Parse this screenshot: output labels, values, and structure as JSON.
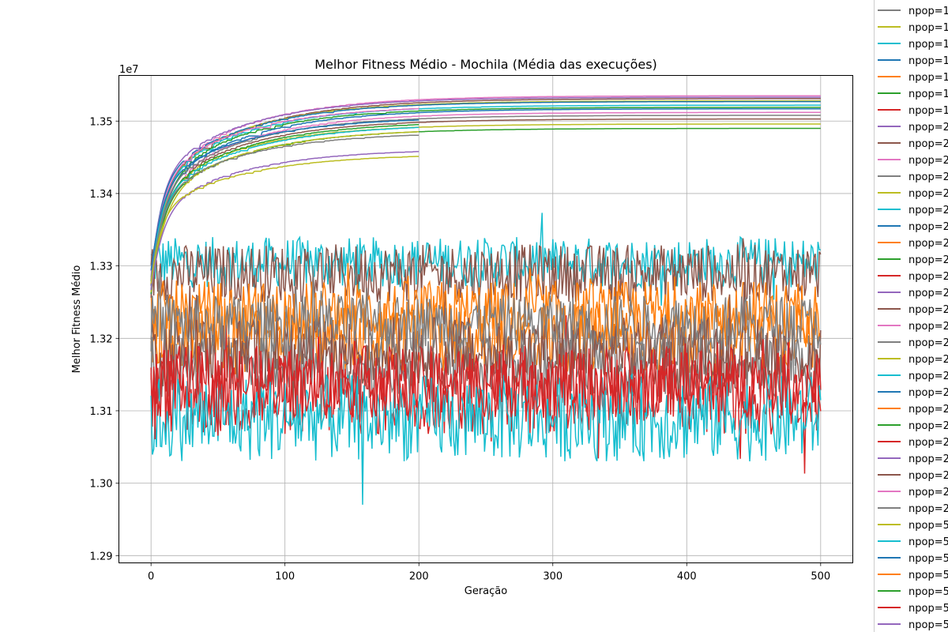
{
  "chart_data": {
    "type": "line",
    "title": "Melhor Fitness Médio - Mochila (Média das execuções)",
    "xlabel": "Geração",
    "ylabel": "Melhor Fitness Médio",
    "y_offset_label": "1e7",
    "xlim": [
      -24,
      524
    ],
    "ylim": [
      12.89,
      13.563
    ],
    "y_unit_note": "values in units of 1e6 (axis shows 1e7 multiplier)",
    "x_ticks": [
      0,
      100,
      200,
      300,
      400,
      500
    ],
    "y_ticks": [
      12.9,
      13.0,
      13.1,
      13.2,
      13.3,
      13.4,
      13.5
    ],
    "y_tick_labels": [
      "1.29",
      "1.30",
      "1.31",
      "1.32",
      "1.33",
      "1.34",
      "1.35"
    ],
    "grid": true,
    "legend_position": "right-outside",
    "legend": [
      {
        "label": "npop=1",
        "color": "#7f7f7f"
      },
      {
        "label": "npop=1",
        "color": "#bcbd22"
      },
      {
        "label": "npop=1",
        "color": "#17becf"
      },
      {
        "label": "npop=1",
        "color": "#1f77b4"
      },
      {
        "label": "npop=1",
        "color": "#ff7f0e"
      },
      {
        "label": "npop=1",
        "color": "#2ca02c"
      },
      {
        "label": "npop=1",
        "color": "#d62728"
      },
      {
        "label": "npop=2",
        "color": "#9467bd"
      },
      {
        "label": "npop=2",
        "color": "#8c564b"
      },
      {
        "label": "npop=2",
        "color": "#e377c2"
      },
      {
        "label": "npop=2",
        "color": "#7f7f7f"
      },
      {
        "label": "npop=2",
        "color": "#bcbd22"
      },
      {
        "label": "npop=2",
        "color": "#17becf"
      },
      {
        "label": "npop=2",
        "color": "#1f77b4"
      },
      {
        "label": "npop=2",
        "color": "#ff7f0e"
      },
      {
        "label": "npop=2",
        "color": "#2ca02c"
      },
      {
        "label": "npop=2",
        "color": "#d62728"
      },
      {
        "label": "npop=2",
        "color": "#9467bd"
      },
      {
        "label": "npop=2",
        "color": "#8c564b"
      },
      {
        "label": "npop=2",
        "color": "#e377c2"
      },
      {
        "label": "npop=2",
        "color": "#7f7f7f"
      },
      {
        "label": "npop=2",
        "color": "#bcbd22"
      },
      {
        "label": "npop=2",
        "color": "#17becf"
      },
      {
        "label": "npop=2",
        "color": "#1f77b4"
      },
      {
        "label": "npop=2",
        "color": "#ff7f0e"
      },
      {
        "label": "npop=2",
        "color": "#2ca02c"
      },
      {
        "label": "npop=2",
        "color": "#d62728"
      },
      {
        "label": "npop=2",
        "color": "#9467bd"
      },
      {
        "label": "npop=2",
        "color": "#8c564b"
      },
      {
        "label": "npop=2",
        "color": "#e377c2"
      },
      {
        "label": "npop=2",
        "color": "#7f7f7f"
      },
      {
        "label": "npop=5",
        "color": "#bcbd22"
      },
      {
        "label": "npop=5",
        "color": "#17becf"
      },
      {
        "label": "npop=5",
        "color": "#1f77b4"
      },
      {
        "label": "npop=5",
        "color": "#ff7f0e"
      },
      {
        "label": "npop=5",
        "color": "#2ca02c"
      },
      {
        "label": "npop=5",
        "color": "#d62728"
      },
      {
        "label": "npop=5",
        "color": "#9467bd"
      }
    ],
    "series_groups": {
      "converging": [
        {
          "color": "#e377c2",
          "xmax": 500,
          "final": 13.535
        },
        {
          "color": "#9467bd",
          "xmax": 500,
          "final": 13.533
        },
        {
          "color": "#8c564b",
          "xmax": 500,
          "final": 13.531
        },
        {
          "color": "#bcbd22",
          "xmax": 500,
          "final": 13.528
        },
        {
          "color": "#1f77b4",
          "xmax": 500,
          "final": 13.527
        },
        {
          "color": "#17becf",
          "xmax": 500,
          "final": 13.522
        },
        {
          "color": "#2ca02c",
          "xmax": 500,
          "final": 13.519
        },
        {
          "color": "#1f77b4",
          "xmax": 500,
          "final": 13.517
        },
        {
          "color": "#e377c2",
          "xmax": 500,
          "final": 13.512
        },
        {
          "color": "#7f7f7f",
          "xmax": 500,
          "final": 13.508
        },
        {
          "color": "#8c564b",
          "xmax": 500,
          "final": 13.503
        },
        {
          "color": "#bcbd22",
          "xmax": 500,
          "final": 13.496
        },
        {
          "color": "#2ca02c",
          "xmax": 500,
          "final": 13.49
        },
        {
          "color": "#e377c2",
          "xmax": 200,
          "final": 13.522
        },
        {
          "color": "#1f77b4",
          "xmax": 200,
          "final": 13.506
        },
        {
          "color": "#2ca02c",
          "xmax": 200,
          "final": 13.5
        },
        {
          "color": "#17becf",
          "xmax": 200,
          "final": 13.496
        },
        {
          "color": "#bcbd22",
          "xmax": 200,
          "final": 13.49
        },
        {
          "color": "#7f7f7f",
          "xmax": 200,
          "final": 13.485
        },
        {
          "color": "#9467bd",
          "xmax": 200,
          "final": 13.462
        },
        {
          "color": "#bcbd22",
          "xmax": 200,
          "final": 13.455
        }
      ],
      "noisy": [
        {
          "color": "#17becf",
          "mean": 13.305,
          "amp": 0.035
        },
        {
          "color": "#8c564b",
          "mean": 13.29,
          "amp": 0.04
        },
        {
          "color": "#ff7f0e",
          "mean": 13.235,
          "amp": 0.045
        },
        {
          "color": "#ff7f0e",
          "mean": 13.2,
          "amp": 0.05
        },
        {
          "color": "#7f7f7f",
          "mean": 13.16,
          "amp": 0.045
        },
        {
          "color": "#8c564b",
          "mean": 13.18,
          "amp": 0.05
        },
        {
          "color": "#d62728",
          "mean": 13.12,
          "amp": 0.055
        },
        {
          "color": "#17becf",
          "mean": 13.09,
          "amp": 0.06
        },
        {
          "color": "#d62728",
          "mean": 13.14,
          "amp": 0.05
        },
        {
          "color": "#7f7f7f",
          "mean": 13.22,
          "amp": 0.04
        }
      ]
    }
  }
}
